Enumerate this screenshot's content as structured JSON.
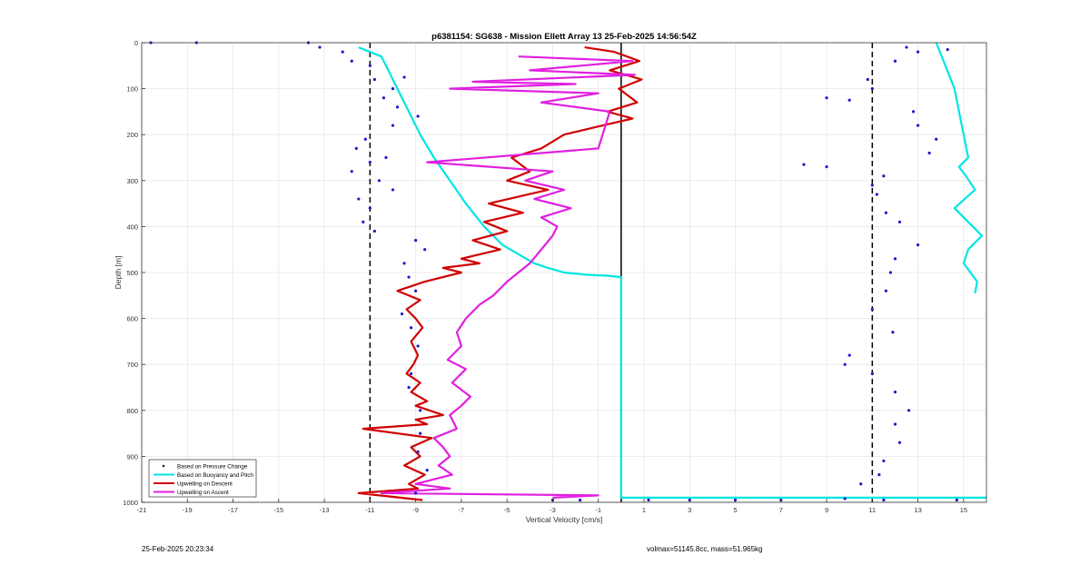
{
  "chart_data": {
    "type": "line",
    "title": "p6381154: SG638 - Mission Ellett Array 13 25-Feb-2025 14:56:54Z",
    "xlabel": "Vertical Velocity [cm/s]",
    "ylabel": "Depth [m]",
    "xlim": [
      -21,
      16
    ],
    "ylim": [
      0,
      1000
    ],
    "y_reversed": true,
    "grid": true,
    "x_ticks": [
      -21,
      -19,
      -17,
      -15,
      -13,
      -11,
      -9,
      -7,
      -5,
      -3,
      -1,
      1,
      3,
      5,
      7,
      9,
      11,
      13,
      15
    ],
    "y_ticks": [
      0,
      100,
      200,
      300,
      400,
      500,
      600,
      700,
      800,
      900,
      1000
    ],
    "reference_lines": [
      {
        "x": -11,
        "style": "dashed",
        "color": "#000000"
      },
      {
        "x": 11,
        "style": "dashed",
        "color": "#000000"
      },
      {
        "x": 0,
        "style": "solid",
        "color": "#000000"
      }
    ],
    "legend": {
      "placement": "bottom-left",
      "entries": [
        {
          "label": "Based on Pressure Change",
          "color": "#000000",
          "marker": "dot"
        },
        {
          "label": "Based on Buoyancy and Pitch",
          "color": "#00e5e5",
          "marker": "line"
        },
        {
          "label": "Upwelling on Descent",
          "color": "#d00000",
          "marker": "line"
        },
        {
          "label": "Upwelling on Ascent",
          "color": "#e020e0",
          "marker": "line"
        }
      ]
    },
    "series": [
      {
        "name": "Based on Buoyancy and Pitch",
        "color": "#00e5e5",
        "segments": [
          {
            "x": [
              -11.5,
              -10.5,
              -10.2,
              -9.8,
              -9.3,
              -8.8,
              -8.2,
              -7.5,
              -6.8,
              -6.0,
              -5.2,
              -4.5,
              -3.8,
              -3.2,
              -2.5,
              -1.5,
              -0.6,
              0.0,
              0.0,
              0.0,
              0.0,
              16.0
            ],
            "y": [
              10,
              30,
              60,
              100,
              150,
              200,
              250,
              300,
              350,
              400,
              440,
              460,
              480,
              490,
              500,
              505,
              507,
              510,
              700,
              900,
              990,
              990
            ]
          },
          {
            "x": [
              13.8,
              14.2,
              14.6,
              14.8,
              15.0,
              15.2,
              14.8,
              15.1,
              15.5,
              14.6,
              15.8,
              15.2,
              15.0,
              15.6,
              15.5
            ],
            "y": [
              0,
              50,
              100,
              150,
              200,
              250,
              270,
              290,
              320,
              360,
              420,
              450,
              480,
              520,
              545
            ]
          }
        ]
      },
      {
        "name": "Upwelling on Descent",
        "color": "#d00000",
        "segments": [
          {
            "x": [
              -1.6,
              -0.3,
              0.8,
              -0.5,
              0.9,
              -0.1,
              0.7,
              -0.6,
              0.5,
              -0.8,
              -2.5,
              -3.5,
              -4.8,
              -4.0,
              -5.0,
              -3.2,
              -5.8,
              -4.3,
              -6.0,
              -5.0,
              -6.5,
              -5.3,
              -7.0,
              -6.2,
              -7.8,
              -7.0,
              -8.6,
              -9.8,
              -8.8,
              -9.4,
              -9.0,
              -8.7,
              -9.2,
              -8.9,
              -9.1,
              -9.4,
              -8.8,
              -9.2,
              -8.5,
              -9.0,
              -8.4,
              -7.8,
              -9.0,
              -8.5,
              -11.3,
              -8.3,
              -9.2,
              -8.8,
              -9.5,
              -8.6,
              -9.3,
              -8.9,
              -11.5,
              -8.7
            ],
            "y": [
              10,
              20,
              40,
              60,
              80,
              100,
              130,
              150,
              165,
              180,
              200,
              230,
              250,
              280,
              300,
              320,
              350,
              370,
              390,
              410,
              430,
              450,
              470,
              480,
              490,
              500,
              520,
              540,
              560,
              580,
              600,
              620,
              650,
              680,
              700,
              720,
              740,
              760,
              780,
              790,
              800,
              810,
              820,
              830,
              840,
              860,
              880,
              900,
              920,
              940,
              960,
              970,
              980,
              995
            ]
          }
        ]
      },
      {
        "name": "Upwelling on Ascent",
        "color": "#e020e0",
        "segments": [
          {
            "x": [
              -4.5,
              0.5,
              -4.0,
              0.6,
              -6.5,
              -2.0,
              -7.5,
              -1.0,
              -3.5,
              -0.5,
              -1.0,
              -8.5,
              -3.0,
              -4.2,
              -2.5,
              -3.8,
              -2.2,
              -3.5,
              -2.8,
              -3.0,
              -3.5,
              -4.0,
              -4.5,
              -5.0,
              -5.6,
              -6.2,
              -6.8,
              -7.2,
              -7.0,
              -7.6,
              -6.8,
              -7.4,
              -6.6,
              -7.0,
              -7.5,
              -7.2,
              -8.2,
              -7.8,
              -7.5,
              -8.0,
              -7.4,
              -9.0,
              -7.5,
              -10.5,
              -1.0,
              -3.0
            ],
            "y": [
              30,
              40,
              60,
              70,
              85,
              90,
              100,
              110,
              130,
              150,
              230,
              260,
              280,
              300,
              320,
              340,
              360,
              380,
              400,
              420,
              450,
              480,
              500,
              520,
              550,
              570,
              600,
              630,
              660,
              690,
              710,
              740,
              770,
              790,
              810,
              840,
              860,
              880,
              900,
              920,
              940,
              960,
              970,
              980,
              985,
              990
            ]
          }
        ]
      },
      {
        "name": "Based on Pressure Change",
        "color": "#000000",
        "marker": "dots",
        "points": [
          {
            "x": -20.6,
            "y": 0
          },
          {
            "x": -18.6,
            "y": 0
          },
          {
            "x": -13.7,
            "y": 0
          },
          {
            "x": -13.2,
            "y": 10
          },
          {
            "x": -12.2,
            "y": 20
          },
          {
            "x": -11.8,
            "y": 40
          },
          {
            "x": -11.0,
            "y": 50
          },
          {
            "x": -10.8,
            "y": 80
          },
          {
            "x": -9.5,
            "y": 75
          },
          {
            "x": -10.0,
            "y": 100
          },
          {
            "x": -10.4,
            "y": 120
          },
          {
            "x": -9.8,
            "y": 140
          },
          {
            "x": -8.9,
            "y": 160
          },
          {
            "x": -10.0,
            "y": 180
          },
          {
            "x": -11.2,
            "y": 210
          },
          {
            "x": -11.6,
            "y": 230
          },
          {
            "x": -10.3,
            "y": 250
          },
          {
            "x": -11.0,
            "y": 260
          },
          {
            "x": -11.8,
            "y": 280
          },
          {
            "x": -10.6,
            "y": 300
          },
          {
            "x": -10.0,
            "y": 320
          },
          {
            "x": -11.5,
            "y": 340
          },
          {
            "x": -11.0,
            "y": 360
          },
          {
            "x": -11.3,
            "y": 390
          },
          {
            "x": -10.8,
            "y": 410
          },
          {
            "x": -9.0,
            "y": 430
          },
          {
            "x": -8.6,
            "y": 450
          },
          {
            "x": -9.5,
            "y": 480
          },
          {
            "x": -9.3,
            "y": 510
          },
          {
            "x": -9.0,
            "y": 540
          },
          {
            "x": -9.6,
            "y": 590
          },
          {
            "x": -9.2,
            "y": 620
          },
          {
            "x": -8.9,
            "y": 660
          },
          {
            "x": -9.2,
            "y": 720
          },
          {
            "x": -9.3,
            "y": 750
          },
          {
            "x": -8.8,
            "y": 800
          },
          {
            "x": -8.8,
            "y": 850
          },
          {
            "x": -8.9,
            "y": 890
          },
          {
            "x": -8.5,
            "y": 930
          },
          {
            "x": -9.0,
            "y": 980
          },
          {
            "x": -3.0,
            "y": 995
          },
          {
            "x": -1.8,
            "y": 995
          },
          {
            "x": 1.2,
            "y": 995
          },
          {
            "x": 3.0,
            "y": 995
          },
          {
            "x": 5.0,
            "y": 995
          },
          {
            "x": 7.0,
            "y": 995
          },
          {
            "x": 9.8,
            "y": 992
          },
          {
            "x": 11.5,
            "y": 995
          },
          {
            "x": 12.5,
            "y": 10
          },
          {
            "x": 13.0,
            "y": 20
          },
          {
            "x": 12.0,
            "y": 40
          },
          {
            "x": 14.3,
            "y": 15
          },
          {
            "x": 10.8,
            "y": 80
          },
          {
            "x": 11.0,
            "y": 100
          },
          {
            "x": 9.0,
            "y": 120
          },
          {
            "x": 10.0,
            "y": 125
          },
          {
            "x": 12.8,
            "y": 150
          },
          {
            "x": 13.0,
            "y": 180
          },
          {
            "x": 13.8,
            "y": 210
          },
          {
            "x": 13.5,
            "y": 240
          },
          {
            "x": 8.0,
            "y": 265
          },
          {
            "x": 9.0,
            "y": 270
          },
          {
            "x": 11.5,
            "y": 290
          },
          {
            "x": 11.0,
            "y": 310
          },
          {
            "x": 11.2,
            "y": 330
          },
          {
            "x": 11.6,
            "y": 370
          },
          {
            "x": 12.2,
            "y": 390
          },
          {
            "x": 13.0,
            "y": 440
          },
          {
            "x": 12.0,
            "y": 470
          },
          {
            "x": 11.8,
            "y": 500
          },
          {
            "x": 11.6,
            "y": 540
          },
          {
            "x": 11.0,
            "y": 580
          },
          {
            "x": 11.9,
            "y": 630
          },
          {
            "x": 10.0,
            "y": 680
          },
          {
            "x": 9.8,
            "y": 700
          },
          {
            "x": 11.0,
            "y": 720
          },
          {
            "x": 12.0,
            "y": 760
          },
          {
            "x": 12.6,
            "y": 800
          },
          {
            "x": 12.0,
            "y": 830
          },
          {
            "x": 12.2,
            "y": 870
          },
          {
            "x": 11.5,
            "y": 910
          },
          {
            "x": 11.3,
            "y": 940
          },
          {
            "x": 10.5,
            "y": 960
          },
          {
            "x": 14.7,
            "y": 995
          }
        ]
      }
    ]
  },
  "footer": {
    "timestamp": "25-Feb-2025 20:23:34",
    "params": "volmax=51145.8cc, mass=51.965kg"
  }
}
